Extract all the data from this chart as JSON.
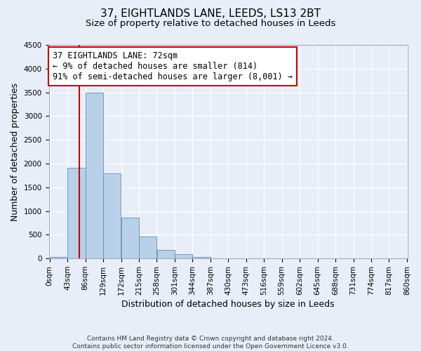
{
  "title": "37, EIGHTLANDS LANE, LEEDS, LS13 2BT",
  "subtitle": "Size of property relative to detached houses in Leeds",
  "xlabel": "Distribution of detached houses by size in Leeds",
  "ylabel": "Number of detached properties",
  "bar_left_edges": [
    0,
    43,
    86,
    129,
    172,
    215,
    258,
    301,
    344,
    387,
    430,
    473,
    516,
    559,
    602,
    645,
    688,
    731,
    774,
    817
  ],
  "bar_heights": [
    40,
    1910,
    3500,
    1790,
    860,
    460,
    185,
    90,
    40,
    10,
    0,
    0,
    0,
    0,
    0,
    0,
    0,
    0,
    0,
    0
  ],
  "bin_width": 43,
  "bar_color": "#b8d0e8",
  "bar_edge_color": "#6090b8",
  "vline_x": 72,
  "vline_color": "#cc0000",
  "annotation_box_text": "37 EIGHTLANDS LANE: 72sqm\n← 9% of detached houses are smaller (814)\n91% of semi-detached houses are larger (8,001) →",
  "annotation_box_color": "#cc0000",
  "ylim": [
    0,
    4500
  ],
  "yticks": [
    0,
    500,
    1000,
    1500,
    2000,
    2500,
    3000,
    3500,
    4000,
    4500
  ],
  "xtick_labels": [
    "0sqm",
    "43sqm",
    "86sqm",
    "129sqm",
    "172sqm",
    "215sqm",
    "258sqm",
    "301sqm",
    "344sqm",
    "387sqm",
    "430sqm",
    "473sqm",
    "516sqm",
    "559sqm",
    "602sqm",
    "645sqm",
    "688sqm",
    "731sqm",
    "774sqm",
    "817sqm",
    "860sqm"
  ],
  "footer_text": "Contains HM Land Registry data © Crown copyright and database right 2024.\nContains public sector information licensed under the Open Government Licence v3.0.",
  "background_color": "#e8eef8",
  "plot_background_color": "#e8eef8",
  "grid_color": "#ffffff",
  "title_fontsize": 11,
  "subtitle_fontsize": 9.5,
  "axis_label_fontsize": 9,
  "tick_fontsize": 7.5,
  "footer_fontsize": 6.5,
  "annotation_fontsize": 8.5
}
